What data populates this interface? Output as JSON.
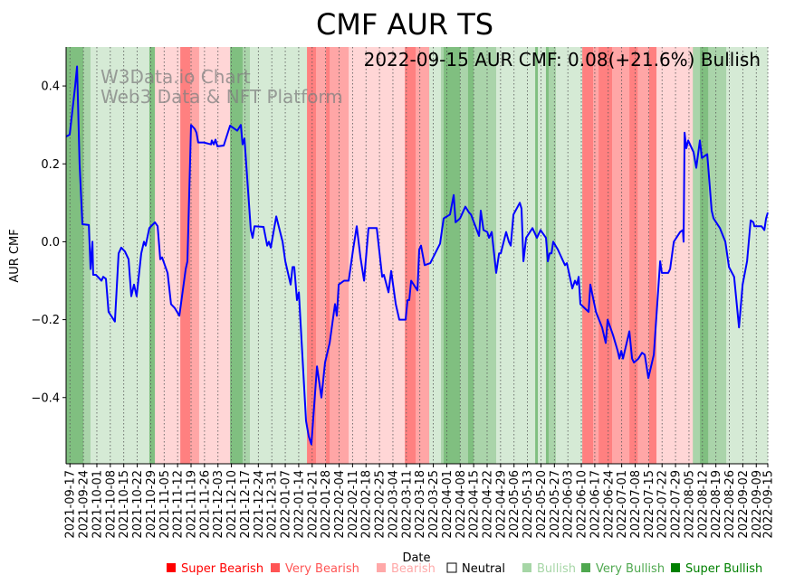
{
  "chart_data": {
    "type": "line",
    "title": "CMF AUR TS",
    "xlabel": "Date",
    "ylabel": "AUR CMF",
    "annotation": "2022-09-15 AUR CMF: 0.08(+21.6%) Bullish",
    "watermark": [
      "W3Data.io Chart",
      "Web3 Data & NFT Platform"
    ],
    "start_date": "2021-09-15",
    "x_unit": "days since start_date",
    "xlim": [
      0,
      365
    ],
    "ylim": [
      -0.57,
      0.5
    ],
    "grid": "vertical dotted at x ticks",
    "yticks": [
      0.4,
      0.2,
      0.0,
      -0.2,
      -0.4
    ],
    "ytick_labels": [
      "0.4",
      "0.2",
      "0.0",
      "−0.2",
      "−0.4"
    ],
    "xtick_labels": [
      "2021-09-17",
      "2021-09-24",
      "2021-10-01",
      "2021-10-08",
      "2021-10-15",
      "2021-10-22",
      "2021-10-29",
      "2021-11-05",
      "2021-11-12",
      "2021-11-19",
      "2021-11-26",
      "2021-12-03",
      "2021-12-10",
      "2021-12-17",
      "2021-12-24",
      "2021-12-31",
      "2022-01-07",
      "2022-01-14",
      "2022-01-21",
      "2022-01-28",
      "2022-02-04",
      "2022-02-11",
      "2022-02-18",
      "2022-02-25",
      "2022-03-04",
      "2022-03-11",
      "2022-03-18",
      "2022-03-25",
      "2022-04-01",
      "2022-04-08",
      "2022-04-15",
      "2022-04-22",
      "2022-04-29",
      "2022-05-06",
      "2022-05-13",
      "2022-05-20",
      "2022-05-27",
      "2022-06-03",
      "2022-06-10",
      "2022-06-17",
      "2022-06-24",
      "2022-07-01",
      "2022-07-08",
      "2022-07-15",
      "2022-07-22",
      "2022-07-29",
      "2022-08-05",
      "2022-08-12",
      "2022-08-19",
      "2022-08-26",
      "2022-09-02",
      "2022-09-09",
      "2022-09-15"
    ],
    "line_color": "#0000ff",
    "series": [
      {
        "name": "AUR CMF",
        "points": [
          [
            0,
            0.27
          ],
          [
            1.9,
            0.275
          ],
          [
            4.7,
            0.4
          ],
          [
            5.7,
            0.45
          ],
          [
            7,
            0.2
          ],
          [
            8.5,
            0.045
          ],
          [
            11.8,
            0.043
          ],
          [
            12.7,
            -0.07
          ],
          [
            13.7,
            0.0
          ],
          [
            14.1,
            -0.085
          ],
          [
            15.5,
            -0.085
          ],
          [
            18.4,
            -0.1
          ],
          [
            19.3,
            -0.09
          ],
          [
            20.7,
            -0.095
          ],
          [
            22.1,
            -0.18
          ],
          [
            25.4,
            -0.205
          ],
          [
            27.3,
            -0.03
          ],
          [
            28.7,
            -0.015
          ],
          [
            30.6,
            -0.025
          ],
          [
            32.5,
            -0.045
          ],
          [
            33.9,
            -0.14
          ],
          [
            35.3,
            -0.11
          ],
          [
            36.7,
            -0.14
          ],
          [
            39.1,
            -0.03
          ],
          [
            40.5,
            0.0
          ],
          [
            41.4,
            -0.01
          ],
          [
            43.3,
            0.035
          ],
          [
            46.2,
            0.05
          ],
          [
            47.6,
            0.04
          ],
          [
            49,
            -0.045
          ],
          [
            49.9,
            -0.04
          ],
          [
            52.8,
            -0.08
          ],
          [
            54.6,
            -0.16
          ],
          [
            56.5,
            -0.17
          ],
          [
            58.9,
            -0.19
          ],
          [
            62.2,
            -0.07
          ],
          [
            63.1,
            -0.05
          ],
          [
            65,
            0.3
          ],
          [
            66.9,
            0.29
          ],
          [
            67.8,
            0.28
          ],
          [
            68.7,
            0.255
          ],
          [
            71.6,
            0.255
          ],
          [
            75.4,
            0.25
          ],
          [
            75.8,
            0.26
          ],
          [
            76.8,
            0.25
          ],
          [
            77.7,
            0.262
          ],
          [
            78.7,
            0.245
          ],
          [
            82,
            0.247
          ],
          [
            85.3,
            0.298
          ],
          [
            89,
            0.285
          ],
          [
            90.9,
            0.3
          ],
          [
            91.8,
            0.25
          ],
          [
            92.8,
            0.265
          ],
          [
            96.1,
            0.03
          ],
          [
            97,
            0.01
          ],
          [
            98,
            0.04
          ],
          [
            102.7,
            0.038
          ],
          [
            104.6,
            -0.01
          ],
          [
            105.5,
            0.0
          ],
          [
            106.5,
            -0.015
          ],
          [
            109.3,
            0.065
          ],
          [
            112.6,
            0.0
          ],
          [
            114,
            -0.05
          ],
          [
            116.8,
            -0.11
          ],
          [
            117.8,
            -0.065
          ],
          [
            118.7,
            -0.065
          ],
          [
            120.1,
            -0.15
          ],
          [
            121.1,
            -0.13
          ],
          [
            124.8,
            -0.46
          ],
          [
            126.2,
            -0.5
          ],
          [
            127.6,
            -0.52
          ],
          [
            130.5,
            -0.32
          ],
          [
            132.8,
            -0.4
          ],
          [
            134.7,
            -0.31
          ],
          [
            137.1,
            -0.26
          ],
          [
            139.9,
            -0.16
          ],
          [
            140.8,
            -0.19
          ],
          [
            141.8,
            -0.11
          ],
          [
            144.6,
            -0.1
          ],
          [
            147,
            -0.1
          ],
          [
            149.3,
            -0.02
          ],
          [
            151.2,
            0.04
          ],
          [
            153.1,
            -0.04
          ],
          [
            155,
            -0.1
          ],
          [
            157.3,
            0.035
          ],
          [
            161.6,
            0.035
          ],
          [
            164.4,
            -0.09
          ],
          [
            165.3,
            -0.085
          ],
          [
            167.7,
            -0.13
          ],
          [
            169.1,
            -0.075
          ],
          [
            171.5,
            -0.16
          ],
          [
            173.3,
            -0.2
          ],
          [
            176.6,
            -0.2
          ],
          [
            177.6,
            -0.15
          ],
          [
            178.5,
            -0.15
          ],
          [
            179.5,
            -0.1
          ],
          [
            182.8,
            -0.125
          ],
          [
            183.7,
            -0.02
          ],
          [
            184.6,
            -0.01
          ],
          [
            186.5,
            -0.06
          ],
          [
            189.4,
            -0.055
          ],
          [
            194.5,
            -0.005
          ],
          [
            196.4,
            0.06
          ],
          [
            199.7,
            0.07
          ],
          [
            201.6,
            0.12
          ],
          [
            202.6,
            0.05
          ],
          [
            204.9,
            0.06
          ],
          [
            207.7,
            0.09
          ],
          [
            209.6,
            0.075
          ],
          [
            210.6,
            0.07
          ],
          [
            214.8,
            0.015
          ],
          [
            215.7,
            0.08
          ],
          [
            217.1,
            0.03
          ],
          [
            219.1,
            0.025
          ],
          [
            220,
            0.01
          ],
          [
            221.4,
            0.025
          ],
          [
            223.7,
            -0.08
          ],
          [
            225.2,
            -0.03
          ],
          [
            226.1,
            -0.03
          ],
          [
            228.9,
            0.025
          ],
          [
            230.3,
            0.0
          ],
          [
            231.3,
            -0.01
          ],
          [
            232.7,
            0.07
          ],
          [
            236,
            0.1
          ],
          [
            236.9,
            0.085
          ],
          [
            237.9,
            -0.05
          ],
          [
            239.3,
            0.01
          ],
          [
            242.6,
            0.035
          ],
          [
            244.9,
            0.01
          ],
          [
            246.8,
            0.03
          ],
          [
            249.6,
            0.01
          ],
          [
            250.6,
            -0.05
          ],
          [
            251.5,
            -0.03
          ],
          [
            252.5,
            -0.03
          ],
          [
            253.4,
            0.0
          ],
          [
            255.8,
            -0.02
          ],
          [
            259.5,
            -0.06
          ],
          [
            260.5,
            -0.055
          ],
          [
            263.3,
            -0.12
          ],
          [
            264.7,
            -0.1
          ],
          [
            265.7,
            -0.11
          ],
          [
            266.6,
            -0.09
          ],
          [
            267.5,
            -0.16
          ],
          [
            271.8,
            -0.18
          ],
          [
            272.7,
            -0.11
          ],
          [
            275.6,
            -0.18
          ],
          [
            278.8,
            -0.22
          ],
          [
            280.7,
            -0.26
          ],
          [
            281.7,
            -0.2
          ],
          [
            284.5,
            -0.24
          ],
          [
            286.9,
            -0.28
          ],
          [
            287.8,
            -0.3
          ],
          [
            288.8,
            -0.28
          ],
          [
            289.7,
            -0.3
          ],
          [
            293,
            -0.23
          ],
          [
            294.4,
            -0.3
          ],
          [
            295.4,
            -0.31
          ],
          [
            297.7,
            -0.3
          ],
          [
            299.6,
            -0.285
          ],
          [
            301,
            -0.29
          ],
          [
            302.9,
            -0.35
          ],
          [
            305.7,
            -0.29
          ],
          [
            309,
            -0.05
          ],
          [
            309.9,
            -0.08
          ],
          [
            313.2,
            -0.08
          ],
          [
            314.2,
            -0.07
          ],
          [
            316.1,
            0.0
          ],
          [
            319.4,
            0.025
          ],
          [
            320.8,
            0.03
          ],
          [
            321.2,
            0.0
          ],
          [
            321.7,
            0.28
          ],
          [
            322.6,
            0.24
          ],
          [
            323.6,
            0.26
          ],
          [
            326.4,
            0.23
          ],
          [
            327.8,
            0.19
          ],
          [
            329.7,
            0.26
          ],
          [
            330.7,
            0.215
          ],
          [
            333.5,
            0.225
          ],
          [
            335.8,
            0.08
          ],
          [
            336.8,
            0.06
          ],
          [
            340.1,
            0.035
          ],
          [
            342.9,
            0.0
          ],
          [
            344.8,
            -0.065
          ],
          [
            347.5,
            -0.09
          ],
          [
            350,
            -0.22
          ],
          [
            351.9,
            -0.11
          ],
          [
            354.2,
            -0.05
          ],
          [
            356.1,
            0.055
          ],
          [
            357.5,
            0.05
          ],
          [
            358,
            0.04
          ],
          [
            361.7,
            0.04
          ],
          [
            363.2,
            0.03
          ],
          [
            364.1,
            0.06
          ],
          [
            365,
            0.075
          ]
        ]
      }
    ],
    "bands": [
      [
        0,
        9,
        "super_bullish"
      ],
      [
        9,
        12.7,
        "very_bullish"
      ],
      [
        12.7,
        43.3,
        "bullish"
      ],
      [
        43.3,
        46.2,
        "super_bullish"
      ],
      [
        46.2,
        59.4,
        "bearish"
      ],
      [
        59.4,
        64.5,
        "super_bearish"
      ],
      [
        64.5,
        69.2,
        "very_bearish"
      ],
      [
        69.2,
        85.3,
        "bearish"
      ],
      [
        85.3,
        91.8,
        "super_bullish"
      ],
      [
        91.8,
        95.6,
        "very_bullish"
      ],
      [
        95.6,
        125.3,
        "bullish"
      ],
      [
        125.3,
        130,
        "super_bearish"
      ],
      [
        130,
        135.2,
        "very_bearish"
      ],
      [
        135.2,
        137.1,
        "super_bearish"
      ],
      [
        137.1,
        147,
        "very_bearish"
      ],
      [
        147,
        176.2,
        "bearish"
      ],
      [
        176.2,
        181.8,
        "super_bearish"
      ],
      [
        181.8,
        188.9,
        "very_bearish"
      ],
      [
        188.9,
        195,
        "bullish"
      ],
      [
        195,
        196.4,
        "very_bullish"
      ],
      [
        196.4,
        204.9,
        "super_bullish"
      ],
      [
        204.9,
        209.1,
        "very_bullish"
      ],
      [
        209.1,
        212,
        "super_bullish"
      ],
      [
        212,
        223.7,
        "very_bullish"
      ],
      [
        223.7,
        244,
        "bullish"
      ],
      [
        244,
        245.4,
        "super_bullish"
      ],
      [
        245.4,
        249.6,
        "bullish"
      ],
      [
        249.6,
        251,
        "super_bullish"
      ],
      [
        251,
        254.8,
        "very_bullish"
      ],
      [
        254.8,
        268.5,
        "bullish"
      ],
      [
        268.5,
        274.1,
        "super_bearish"
      ],
      [
        274.1,
        277,
        "very_bearish"
      ],
      [
        277,
        284,
        "super_bearish"
      ],
      [
        284,
        293,
        "very_bearish"
      ],
      [
        293,
        297.3,
        "super_bearish"
      ],
      [
        297.3,
        303.3,
        "very_bearish"
      ],
      [
        303.3,
        307.1,
        "super_bearish"
      ],
      [
        307.1,
        326,
        "bearish"
      ],
      [
        326,
        329.7,
        "very_bullish"
      ],
      [
        329.7,
        334,
        "super_bullish"
      ],
      [
        334,
        343.4,
        "very_bullish"
      ],
      [
        343.4,
        365,
        "bullish"
      ]
    ],
    "band_colors": {
      "super_bearish": "#ff8080",
      "very_bearish": "#ffa6a6",
      "bearish": "#ffd6d6",
      "bullish": "#d5ead5",
      "very_bullish": "#aad4aa",
      "super_bullish": "#80bf80"
    },
    "legend": {
      "placement": "bottom",
      "items": [
        {
          "label": "Super Bearish",
          "color": "#ff0000"
        },
        {
          "label": "Very Bearish",
          "color": "#ff5555"
        },
        {
          "label": "Bearish",
          "color": "#ffa8a8"
        },
        {
          "label": "Neutral",
          "color": "#000000",
          "hollow": true
        },
        {
          "label": "Bullish",
          "color": "#a6d6a6"
        },
        {
          "label": "Very Bullish",
          "color": "#4fa84f"
        },
        {
          "label": "Super Bullish",
          "color": "#008000"
        }
      ]
    }
  }
}
